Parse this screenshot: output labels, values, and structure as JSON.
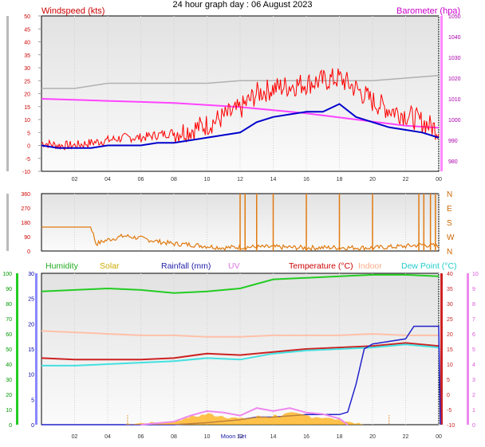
{
  "page": {
    "title": "24 hour graph day : 06 August 2023"
  },
  "x_hour_labels": [
    "02",
    "04",
    "06",
    "08",
    "10",
    "12",
    "14",
    "16",
    "18",
    "20",
    "22",
    "00"
  ],
  "annotations": {
    "moon_set": "Moon Set"
  },
  "colors": {
    "wind": "#ff0000",
    "gust": "#ff0000",
    "avg_wind": "#0000cc",
    "barometer": "#ff44ff",
    "gray_series": "#b0b0b0",
    "direction": "#e07a10",
    "humidity": "#22cc22",
    "solar": "#ffaa00",
    "rainfall": "#2222cc",
    "uv": "#ee88ee",
    "temperature": "#cc2222",
    "indoor": "#ffc0a8",
    "dew_point": "#44e0e0"
  },
  "chart_data": [
    {
      "type": "line",
      "name": "wind-barometer",
      "title": "24 hour graph day : 06 August 2023",
      "ylabel": "Windspeed (kts)",
      "y2label": "Barometer (hpa)",
      "ylim": [
        -10,
        50
      ],
      "yticks": [
        -10,
        -5,
        0,
        5,
        10,
        15,
        20,
        25,
        30,
        35,
        40,
        45,
        50
      ],
      "y2lim": [
        975,
        1050
      ],
      "y2ticks": [
        980,
        990,
        1000,
        1010,
        1020,
        1030,
        1040,
        1050
      ],
      "xlim": [
        0,
        24
      ],
      "x_tick_labels": [
        "02",
        "04",
        "06",
        "08",
        "10",
        "12",
        "14",
        "16",
        "18",
        "20",
        "22",
        "00"
      ],
      "series": [
        {
          "name": "Windspeed (kts)",
          "axis": "left",
          "color": "#ff0000",
          "x": [
            0,
            1,
            2,
            3,
            4,
            5,
            6,
            7,
            8,
            9,
            10,
            11,
            12,
            13,
            14,
            15,
            16,
            17,
            18,
            19,
            20,
            21,
            22,
            23,
            24
          ],
          "values": [
            1,
            0,
            0,
            1,
            2,
            3,
            3,
            4,
            5,
            6,
            8,
            11,
            14,
            20,
            22,
            23,
            24,
            25,
            26,
            22,
            17,
            14,
            12,
            9,
            6
          ]
        },
        {
          "name": "average",
          "axis": "left",
          "color": "#0000cc",
          "x": [
            0,
            1,
            2,
            3,
            4,
            5,
            6,
            7,
            8,
            9,
            10,
            11,
            12,
            13,
            14,
            15,
            16,
            17,
            18,
            19,
            20,
            21,
            22,
            23,
            24
          ],
          "values": [
            0,
            -1,
            -1,
            -1,
            0,
            0,
            0,
            1,
            1,
            2,
            3,
            4,
            5,
            9,
            11,
            12,
            13,
            13,
            16,
            11,
            9,
            7,
            6,
            5,
            3
          ]
        },
        {
          "name": "Barometer (hpa)",
          "axis": "right",
          "color": "#ff44ff",
          "x": [
            0,
            2,
            4,
            6,
            8,
            10,
            12,
            14,
            16,
            18,
            20,
            22,
            24
          ],
          "values": [
            1010,
            1009.5,
            1009,
            1008.5,
            1008,
            1007,
            1006,
            1004.5,
            1003,
            1001,
            999,
            997,
            996
          ]
        },
        {
          "name": "grey",
          "axis": "left",
          "color": "#b0b0b0",
          "x": [
            0,
            2,
            4,
            6,
            8,
            10,
            12,
            14,
            16,
            18,
            20,
            22,
            24
          ],
          "values": [
            22,
            22,
            24,
            24,
            24,
            24,
            25,
            25,
            25,
            25,
            25,
            26,
            27
          ]
        }
      ]
    },
    {
      "type": "line",
      "name": "wind-direction",
      "ylim": [
        0,
        360
      ],
      "yticks": [
        0,
        90,
        180,
        270,
        360
      ],
      "right_labels": [
        "N",
        "W",
        "S",
        "E",
        "N"
      ],
      "xlim": [
        0,
        24
      ],
      "series": [
        {
          "name": "direction",
          "color": "#e07a10",
          "x": [
            0,
            3,
            3.3,
            4,
            5,
            6,
            7,
            8,
            9,
            10,
            11,
            12,
            14,
            16,
            18,
            20,
            21,
            22,
            23,
            24
          ],
          "values": [
            150,
            150,
            45,
            70,
            95,
            80,
            60,
            45,
            40,
            30,
            20,
            25,
            25,
            20,
            22,
            20,
            25,
            30,
            40,
            30
          ]
        }
      ]
    },
    {
      "type": "line",
      "name": "temperature-humidity",
      "series_titles": [
        "Humidity",
        "Solar",
        "Rainfall (mm)",
        "UV",
        "Temperature (°C)",
        "Indoor",
        "Dew Point (°C)"
      ],
      "left_axis": {
        "ylim": [
          0,
          100
        ],
        "yticks": [
          0,
          10,
          20,
          30,
          40,
          50,
          60,
          70,
          80,
          90,
          100
        ]
      },
      "inner_axis": {
        "ylim": [
          0,
          30
        ],
        "yticks": [
          0,
          5,
          10,
          15,
          20,
          25,
          30
        ]
      },
      "temp_axis": {
        "ylim": [
          -10,
          40
        ],
        "yticks": [
          -10,
          -5,
          0,
          5,
          10,
          15,
          20,
          25,
          30,
          35,
          40
        ]
      },
      "uv_axis": {
        "ylim": [
          0,
          10
        ],
        "yticks": [
          0,
          1,
          2,
          3,
          4,
          5,
          6,
          7,
          8,
          9,
          10
        ]
      },
      "xlim": [
        0,
        24
      ],
      "x_tick_labels": [
        "02",
        "04",
        "06",
        "08",
        "10",
        "12",
        "14",
        "16",
        "18",
        "20",
        "22",
        "00"
      ],
      "series": [
        {
          "name": "Humidity",
          "axis": "left",
          "color": "#22cc22",
          "x": [
            0,
            2,
            4,
            6,
            8,
            10,
            12,
            14,
            16,
            18,
            20,
            22,
            24
          ],
          "values": [
            88,
            89,
            90,
            89,
            87,
            88,
            90,
            96,
            97,
            98,
            99,
            99,
            98
          ]
        },
        {
          "name": "Temperature (°C)",
          "axis": "temp",
          "color": "#cc2222",
          "x": [
            0,
            2,
            4,
            6,
            8,
            10,
            12,
            14,
            16,
            18,
            20,
            22,
            24
          ],
          "values": [
            12,
            11.5,
            11.5,
            11.5,
            12,
            13.5,
            13,
            14,
            15,
            15.5,
            16,
            17,
            16
          ]
        },
        {
          "name": "Dew Point (°C)",
          "axis": "temp",
          "color": "#44e0e0",
          "x": [
            0,
            2,
            4,
            6,
            8,
            10,
            12,
            14,
            16,
            18,
            20,
            22,
            24
          ],
          "values": [
            9.5,
            9.5,
            10,
            10.5,
            11,
            12,
            11.5,
            13.5,
            14.5,
            15,
            15.5,
            16.5,
            15.5
          ]
        },
        {
          "name": "Indoor",
          "axis": "temp",
          "color": "#ffc0a8",
          "x": [
            0,
            2,
            4,
            6,
            8,
            10,
            12,
            14,
            16,
            18,
            20,
            22,
            24
          ],
          "values": [
            21,
            20.5,
            20,
            19.5,
            19.5,
            19,
            19,
            19.5,
            19.5,
            19.5,
            20,
            19.5,
            19.5
          ]
        },
        {
          "name": "Rainfall (mm)",
          "axis": "inner",
          "color": "#2222cc",
          "x": [
            0,
            8,
            10,
            12,
            13,
            14,
            16,
            18,
            18.5,
            19,
            19.5,
            20,
            22,
            22.5,
            23,
            24,
            24.1
          ],
          "values": [
            0,
            0,
            0.4,
            1,
            1.5,
            1.5,
            2,
            2,
            2.5,
            8,
            15,
            16,
            17,
            19.5,
            19.5,
            19.5,
            0
          ]
        },
        {
          "name": "Solar",
          "axis": "left",
          "color": "#ffaa00",
          "kind": "area",
          "x": [
            5,
            6,
            8,
            9,
            10,
            11,
            12,
            13,
            14,
            15,
            16,
            17,
            18,
            19,
            19.5
          ],
          "values": [
            0,
            1,
            2,
            5,
            7,
            6,
            4,
            5,
            6,
            7,
            6,
            5,
            3,
            1,
            0
          ]
        },
        {
          "name": "UV",
          "axis": "uv",
          "color": "#ee88ee",
          "x": [
            6,
            8,
            9,
            10,
            11,
            12,
            13,
            14,
            15,
            16,
            17,
            18,
            18.5
          ],
          "values": [
            0,
            0.2,
            0.6,
            0.9,
            0.8,
            0.6,
            1.1,
            0.9,
            1.1,
            0.8,
            0.7,
            0.4,
            0
          ]
        }
      ]
    }
  ]
}
